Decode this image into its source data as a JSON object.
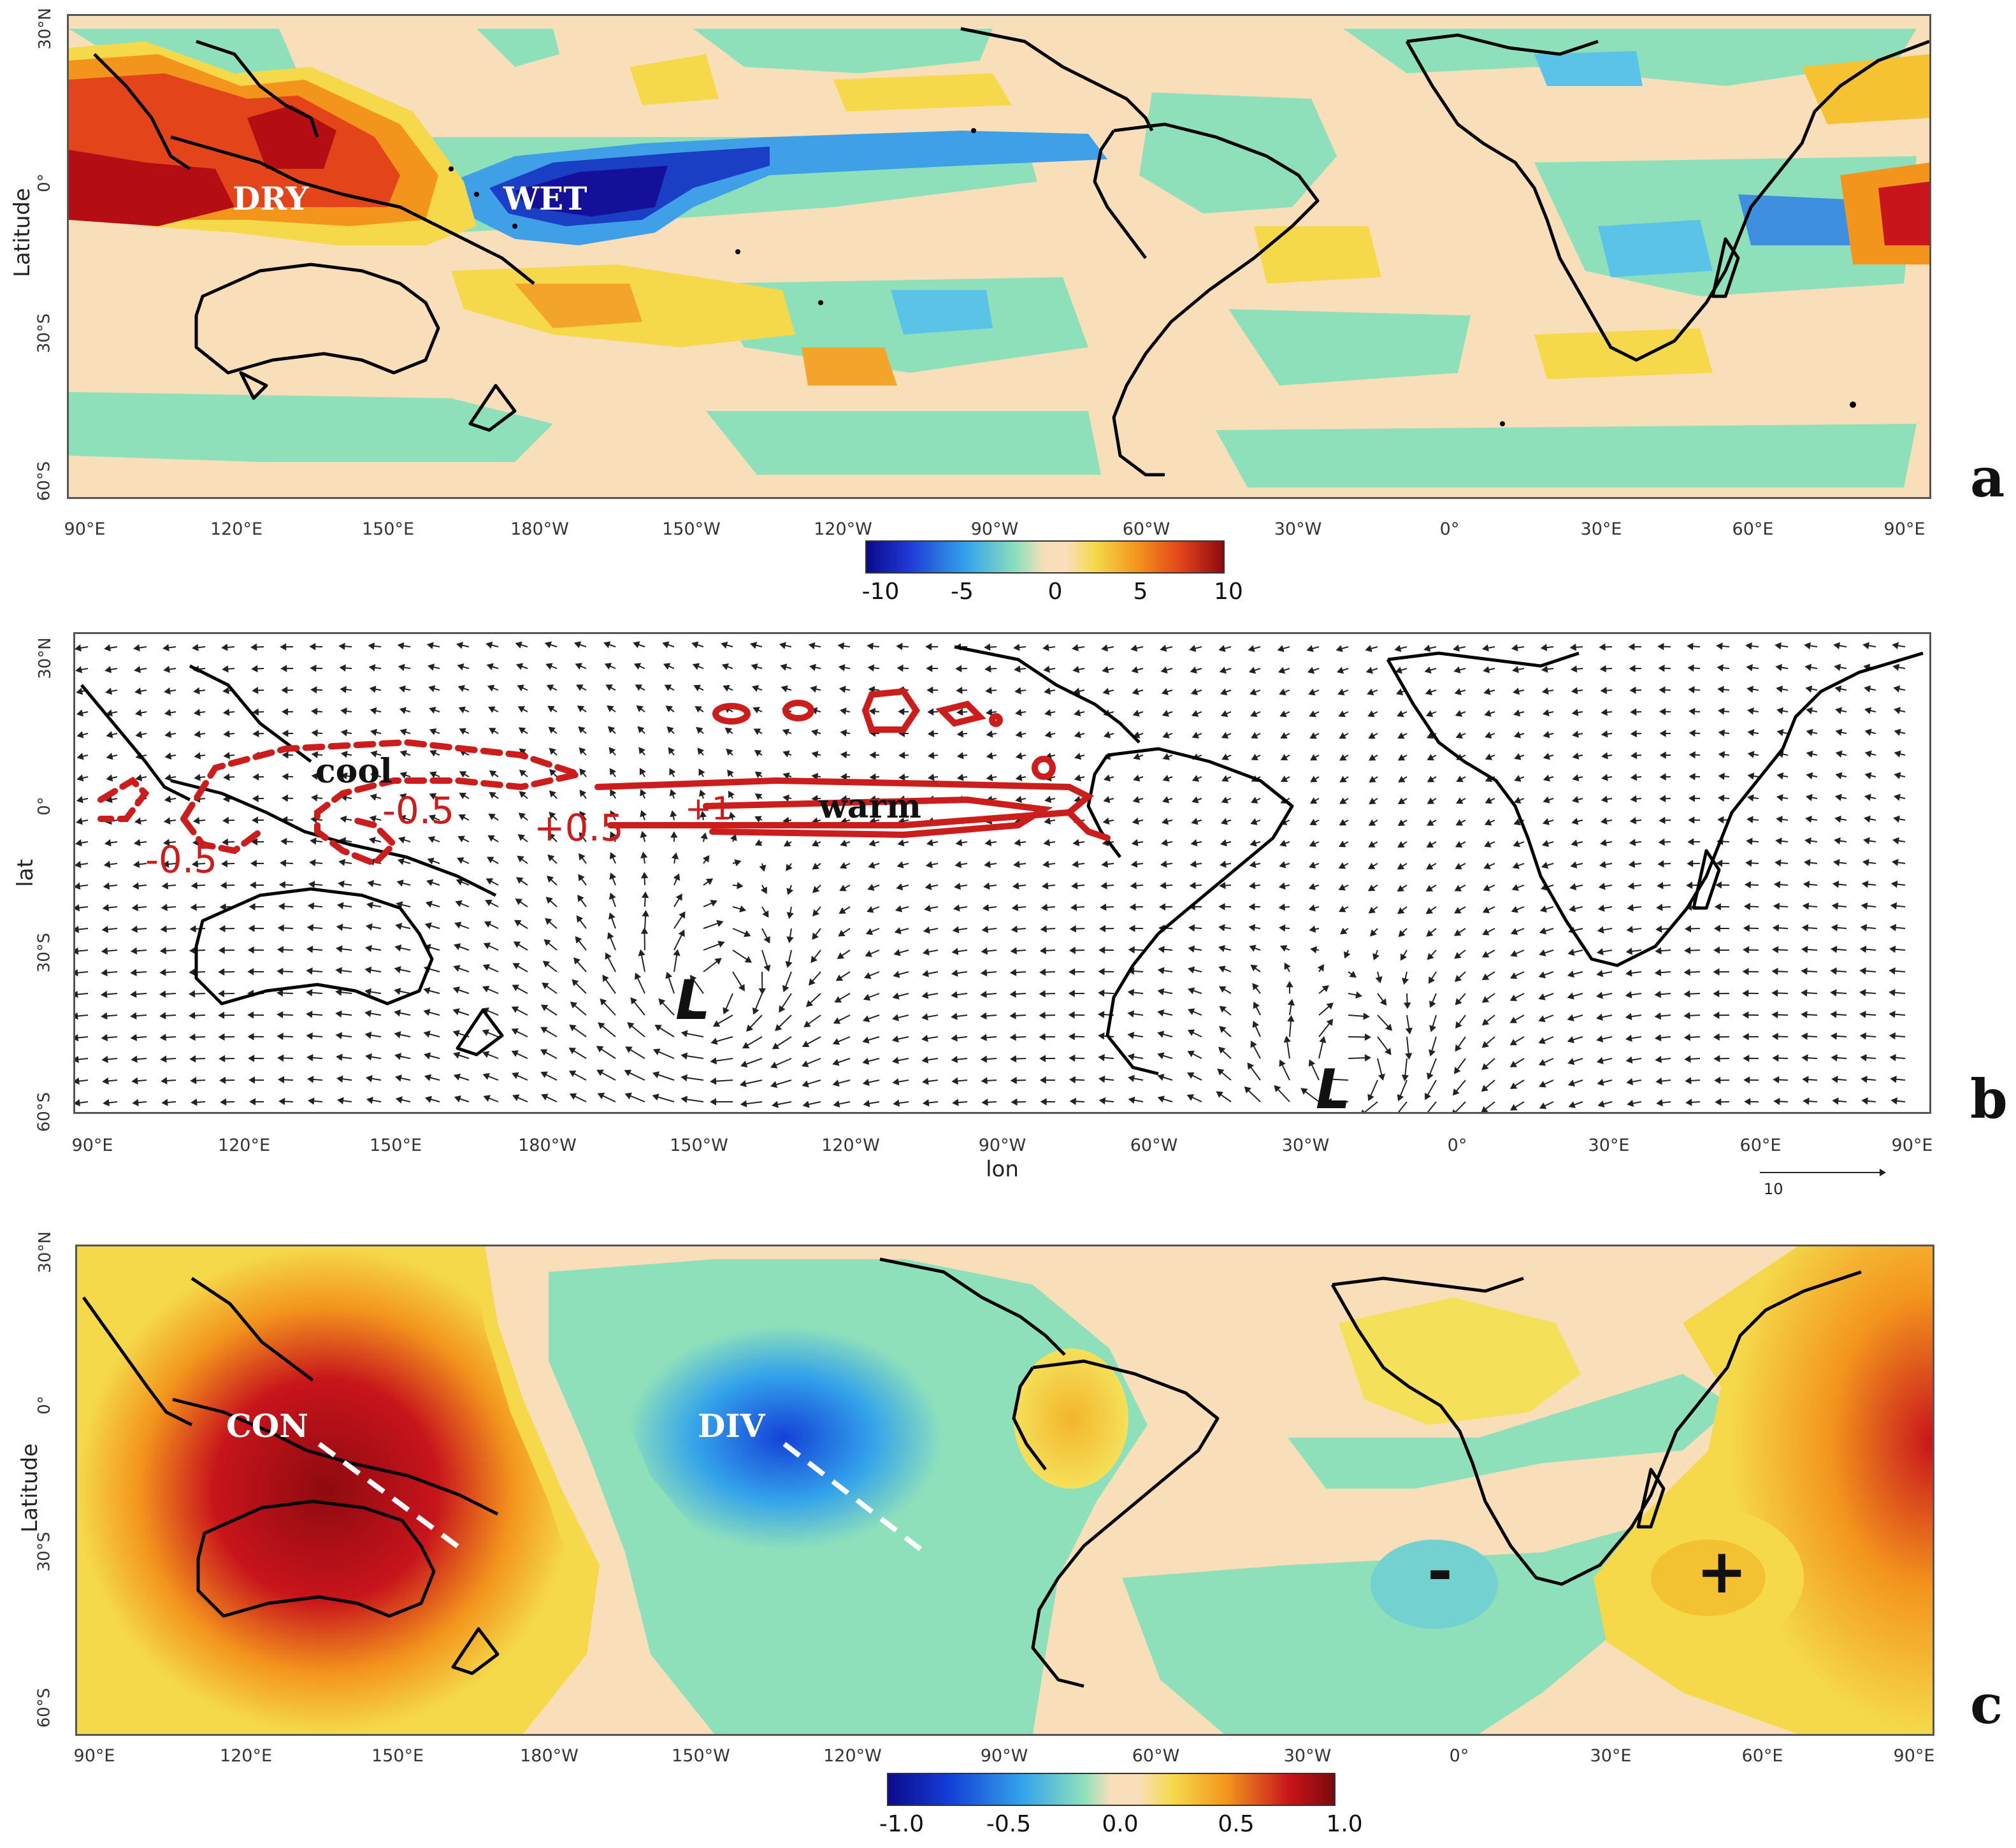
{
  "lon_ticks": [
    "90°E",
    "120°E",
    "150°E",
    "180°W",
    "150°W",
    "120°W",
    "90°W",
    "60°W",
    "30°W",
    "0°",
    "30°E",
    "60°E",
    "90°E"
  ],
  "lon_ticks_c": [
    "90°E",
    "120°E",
    "150°E",
    "180°W",
    "150°W",
    "120°W",
    "90°W",
    "60°W",
    "30°W",
    "0°",
    "30°E",
    "60°E",
    "90°E"
  ],
  "lat_ticks": [
    "30°N",
    "0°",
    "30°S",
    "60°S"
  ],
  "panel_a": {
    "letter": "a",
    "ylabel": "Latitude",
    "labels": {
      "dry": "DRY",
      "wet": "WET"
    },
    "colorbar": {
      "ticks": [
        "-10",
        "-5",
        "0",
        "5",
        "10"
      ],
      "range": [
        -10,
        10
      ]
    }
  },
  "panel_b": {
    "letter": "b",
    "ylabel": "lat",
    "xlabel": "lon",
    "labels": {
      "cool": "cool",
      "warm": "warm",
      "low1": "L",
      "low2": "L"
    },
    "contours": [
      "-0.5",
      "-0.5",
      "-0.5",
      "+0.5",
      "+1"
    ],
    "reference_vector": "10"
  },
  "panel_c": {
    "letter": "c",
    "ylabel": "Latitude",
    "labels": {
      "con": "CON",
      "div": "DIV",
      "minus": "-",
      "plus": "+"
    },
    "colorbar": {
      "ticks": [
        "-1.0",
        "-0.5",
        "0.0",
        "0.5",
        "1.0"
      ],
      "range": [
        -1.0,
        1.0
      ]
    }
  },
  "colors": {
    "neutral": "#f8dfb9",
    "light_green": "#8ee0bb",
    "dark_blue": "#1b13a8",
    "red": "#c8141b",
    "contour_red": "#cc1d1d"
  }
}
